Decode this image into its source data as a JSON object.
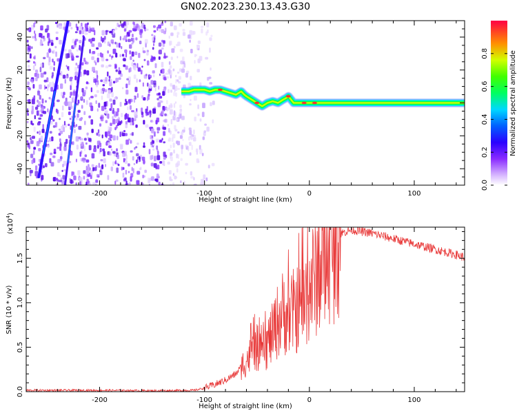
{
  "title": "GN02.2023.230.13.43.G30",
  "chart_data": [
    {
      "type": "heatmap",
      "xlabel": "Height of straight line (km)",
      "ylabel": "Frequency (Hz)",
      "xlim": [
        -270,
        148
      ],
      "ylim": [
        -50,
        50
      ],
      "x_ticks": [
        -200,
        -100,
        0,
        100
      ],
      "y_ticks": [
        -40,
        -20,
        0,
        20,
        40
      ],
      "colorbar": {
        "label": "Normalized spectral amplitude",
        "range": [
          0.0,
          1.0
        ],
        "ticks": [
          0.0,
          0.2,
          0.4,
          0.6,
          0.8
        ],
        "colors": [
          "#ffffff",
          "#9b2cff",
          "#3c00ff",
          "#0048ff",
          "#00e0ff",
          "#00ff30",
          "#c8ff00",
          "#ff8a00",
          "#ff003c"
        ]
      },
      "signal_trace": {
        "x": [
          -122,
          -115,
          -110,
          -105,
          -100,
          -95,
          -90,
          -85,
          -80,
          -75,
          -70,
          -65,
          -62,
          -60,
          -55,
          -50,
          -45,
          -40,
          -35,
          -30,
          -25,
          -22,
          -20,
          -15,
          -10,
          -5,
          0,
          10,
          50,
          100,
          148
        ],
        "freq": [
          7,
          7,
          8,
          8,
          8,
          7,
          8,
          8,
          7,
          6,
          5,
          7,
          5,
          4,
          2,
          0,
          -2,
          0,
          1,
          0,
          2,
          3,
          4,
          0,
          0,
          0,
          0,
          0,
          0,
          0,
          0
        ]
      },
      "diagonal_streaks": [
        {
          "x_start": -258,
          "freq_start": -45,
          "x_end": -230,
          "freq_end": 50
        },
        {
          "x_start": -233,
          "freq_start": -50,
          "x_end": -215,
          "freq_end": 40
        }
      ],
      "noise_region_x": [
        -270,
        -100
      ]
    },
    {
      "type": "line",
      "xlabel": "Height of straight line (km)",
      "ylabel": "SNR (10 * v/v)",
      "y_multiplier": "(x10^4)",
      "xlim": [
        -270,
        148
      ],
      "ylim": [
        0,
        18500
      ],
      "x_ticks": [
        -200,
        -100,
        0,
        100
      ],
      "y_ticks": [
        0,
        5000,
        10000,
        15000
      ],
      "color": "#e83838",
      "series": [
        {
          "x": [
            -270,
            -200,
            -150,
            -110,
            -100,
            -90,
            -80,
            -70,
            -62,
            -55,
            -50,
            -45,
            -40,
            -35,
            -30,
            -25,
            -20,
            -15,
            -10,
            -5,
            0,
            5,
            10,
            15,
            20,
            25,
            30,
            40,
            50,
            60,
            70,
            80,
            90,
            100,
            110,
            120,
            130,
            140,
            148
          ],
          "y": [
            150,
            150,
            100,
            150,
            400,
            800,
            1300,
            2000,
            3300,
            4200,
            5000,
            3800,
            5500,
            6500,
            8000,
            9000,
            8500,
            9000,
            9500,
            10000,
            11500,
            13000,
            14000,
            15000,
            16000,
            17000,
            17800,
            18200,
            18000,
            17800,
            17500,
            17200,
            16900,
            16600,
            16300,
            16000,
            15700,
            15400,
            15100
          ]
        }
      ]
    }
  ]
}
